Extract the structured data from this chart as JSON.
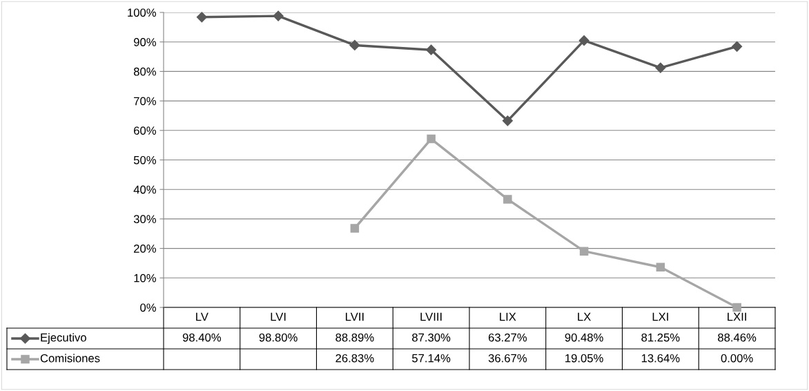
{
  "chart_data": {
    "type": "line",
    "categories": [
      "LV",
      "LVI",
      "LVII",
      "LVIII",
      "LIX",
      "LX",
      "LXI",
      "LXII"
    ],
    "series": [
      {
        "name": "Ejecutivo",
        "color": "#595959",
        "marker": "diamond",
        "values": [
          98.4,
          98.8,
          88.89,
          87.3,
          63.27,
          90.48,
          81.25,
          88.46
        ],
        "value_labels": [
          "98.40%",
          "98.80%",
          "88.89%",
          "87.30%",
          "63.27%",
          "90.48%",
          "81.25%",
          "88.46%"
        ]
      },
      {
        "name": "Comisiones",
        "color": "#a6a6a6",
        "marker": "square",
        "values": [
          null,
          null,
          26.83,
          57.14,
          36.67,
          19.05,
          13.64,
          0.0
        ],
        "value_labels": [
          null,
          null,
          "26.83%",
          "57.14%",
          "36.67%",
          "19.05%",
          "13.64%",
          "0.00%"
        ]
      }
    ],
    "ylim": [
      0,
      100
    ],
    "yticks": [
      {
        "value": 0,
        "label": "0%"
      },
      {
        "value": 10,
        "label": "10%"
      },
      {
        "value": 20,
        "label": "20%"
      },
      {
        "value": 30,
        "label": "30%"
      },
      {
        "value": 40,
        "label": "40%"
      },
      {
        "value": 50,
        "label": "50%"
      },
      {
        "value": 60,
        "label": "60%"
      },
      {
        "value": 70,
        "label": "70%"
      },
      {
        "value": 80,
        "label": "80%"
      },
      {
        "value": 90,
        "label": "90%"
      },
      {
        "value": 100,
        "label": "100%"
      }
    ],
    "grid": "y",
    "legend": "bottom left",
    "line_style": "solid"
  }
}
